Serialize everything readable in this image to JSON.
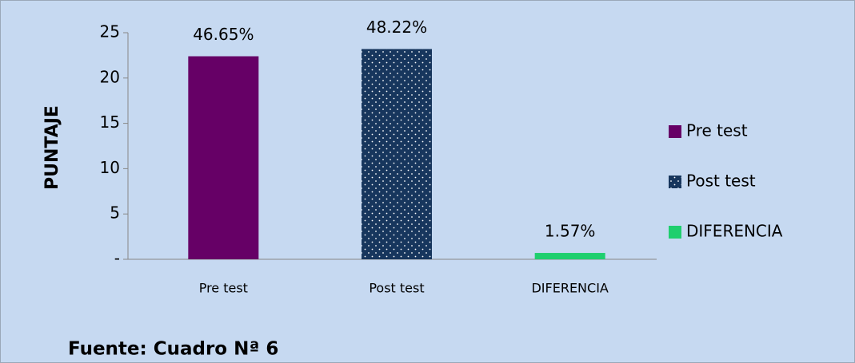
{
  "chart_data": {
    "type": "bar",
    "categories": [
      "Pre test",
      "Post test",
      "DIFERENCIA"
    ],
    "values": [
      22.4,
      23.2,
      0.7
    ],
    "annotations": [
      "46.65%",
      "48.22%",
      "1.57%"
    ],
    "colors": [
      "#660066",
      "#17365d",
      "#1fcf6e"
    ],
    "fill_patterns": [
      "solid",
      "dotted",
      "solid"
    ],
    "ylabel": "PUNTAJE",
    "ylim": [
      0,
      25
    ],
    "yticks": [
      {
        "value": 0,
        "label": "-"
      },
      5,
      10,
      15,
      20,
      25
    ],
    "legend": "right",
    "source": "Fuente: Cuadro Nª 6"
  }
}
